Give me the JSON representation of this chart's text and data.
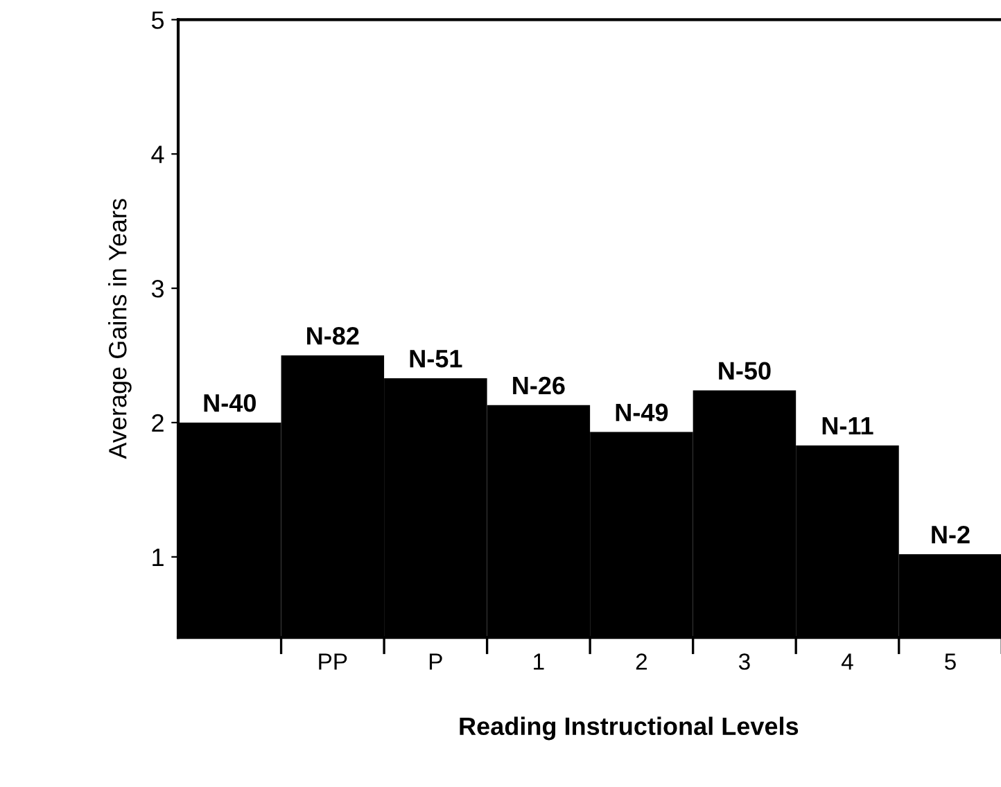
{
  "chart_data": {
    "type": "bar",
    "xlabel": "Reading Instructional Levels",
    "ylabel": "Average Gains in Years",
    "categories": [
      null,
      "PP",
      "P",
      "1",
      "2",
      "3",
      "4",
      "5"
    ],
    "values": [
      2.0,
      2.5,
      2.33,
      2.13,
      1.93,
      2.24,
      1.83,
      1.02
    ],
    "value_labels": [
      "N-40",
      "N-82",
      "N-51",
      "N-26",
      "N-49",
      "N-50",
      "N-11",
      "N-2"
    ],
    "color": "#000000",
    "ylim": [
      0.4,
      5
    ],
    "yticks": [
      1,
      2,
      3,
      4,
      5
    ],
    "grid": false
  }
}
